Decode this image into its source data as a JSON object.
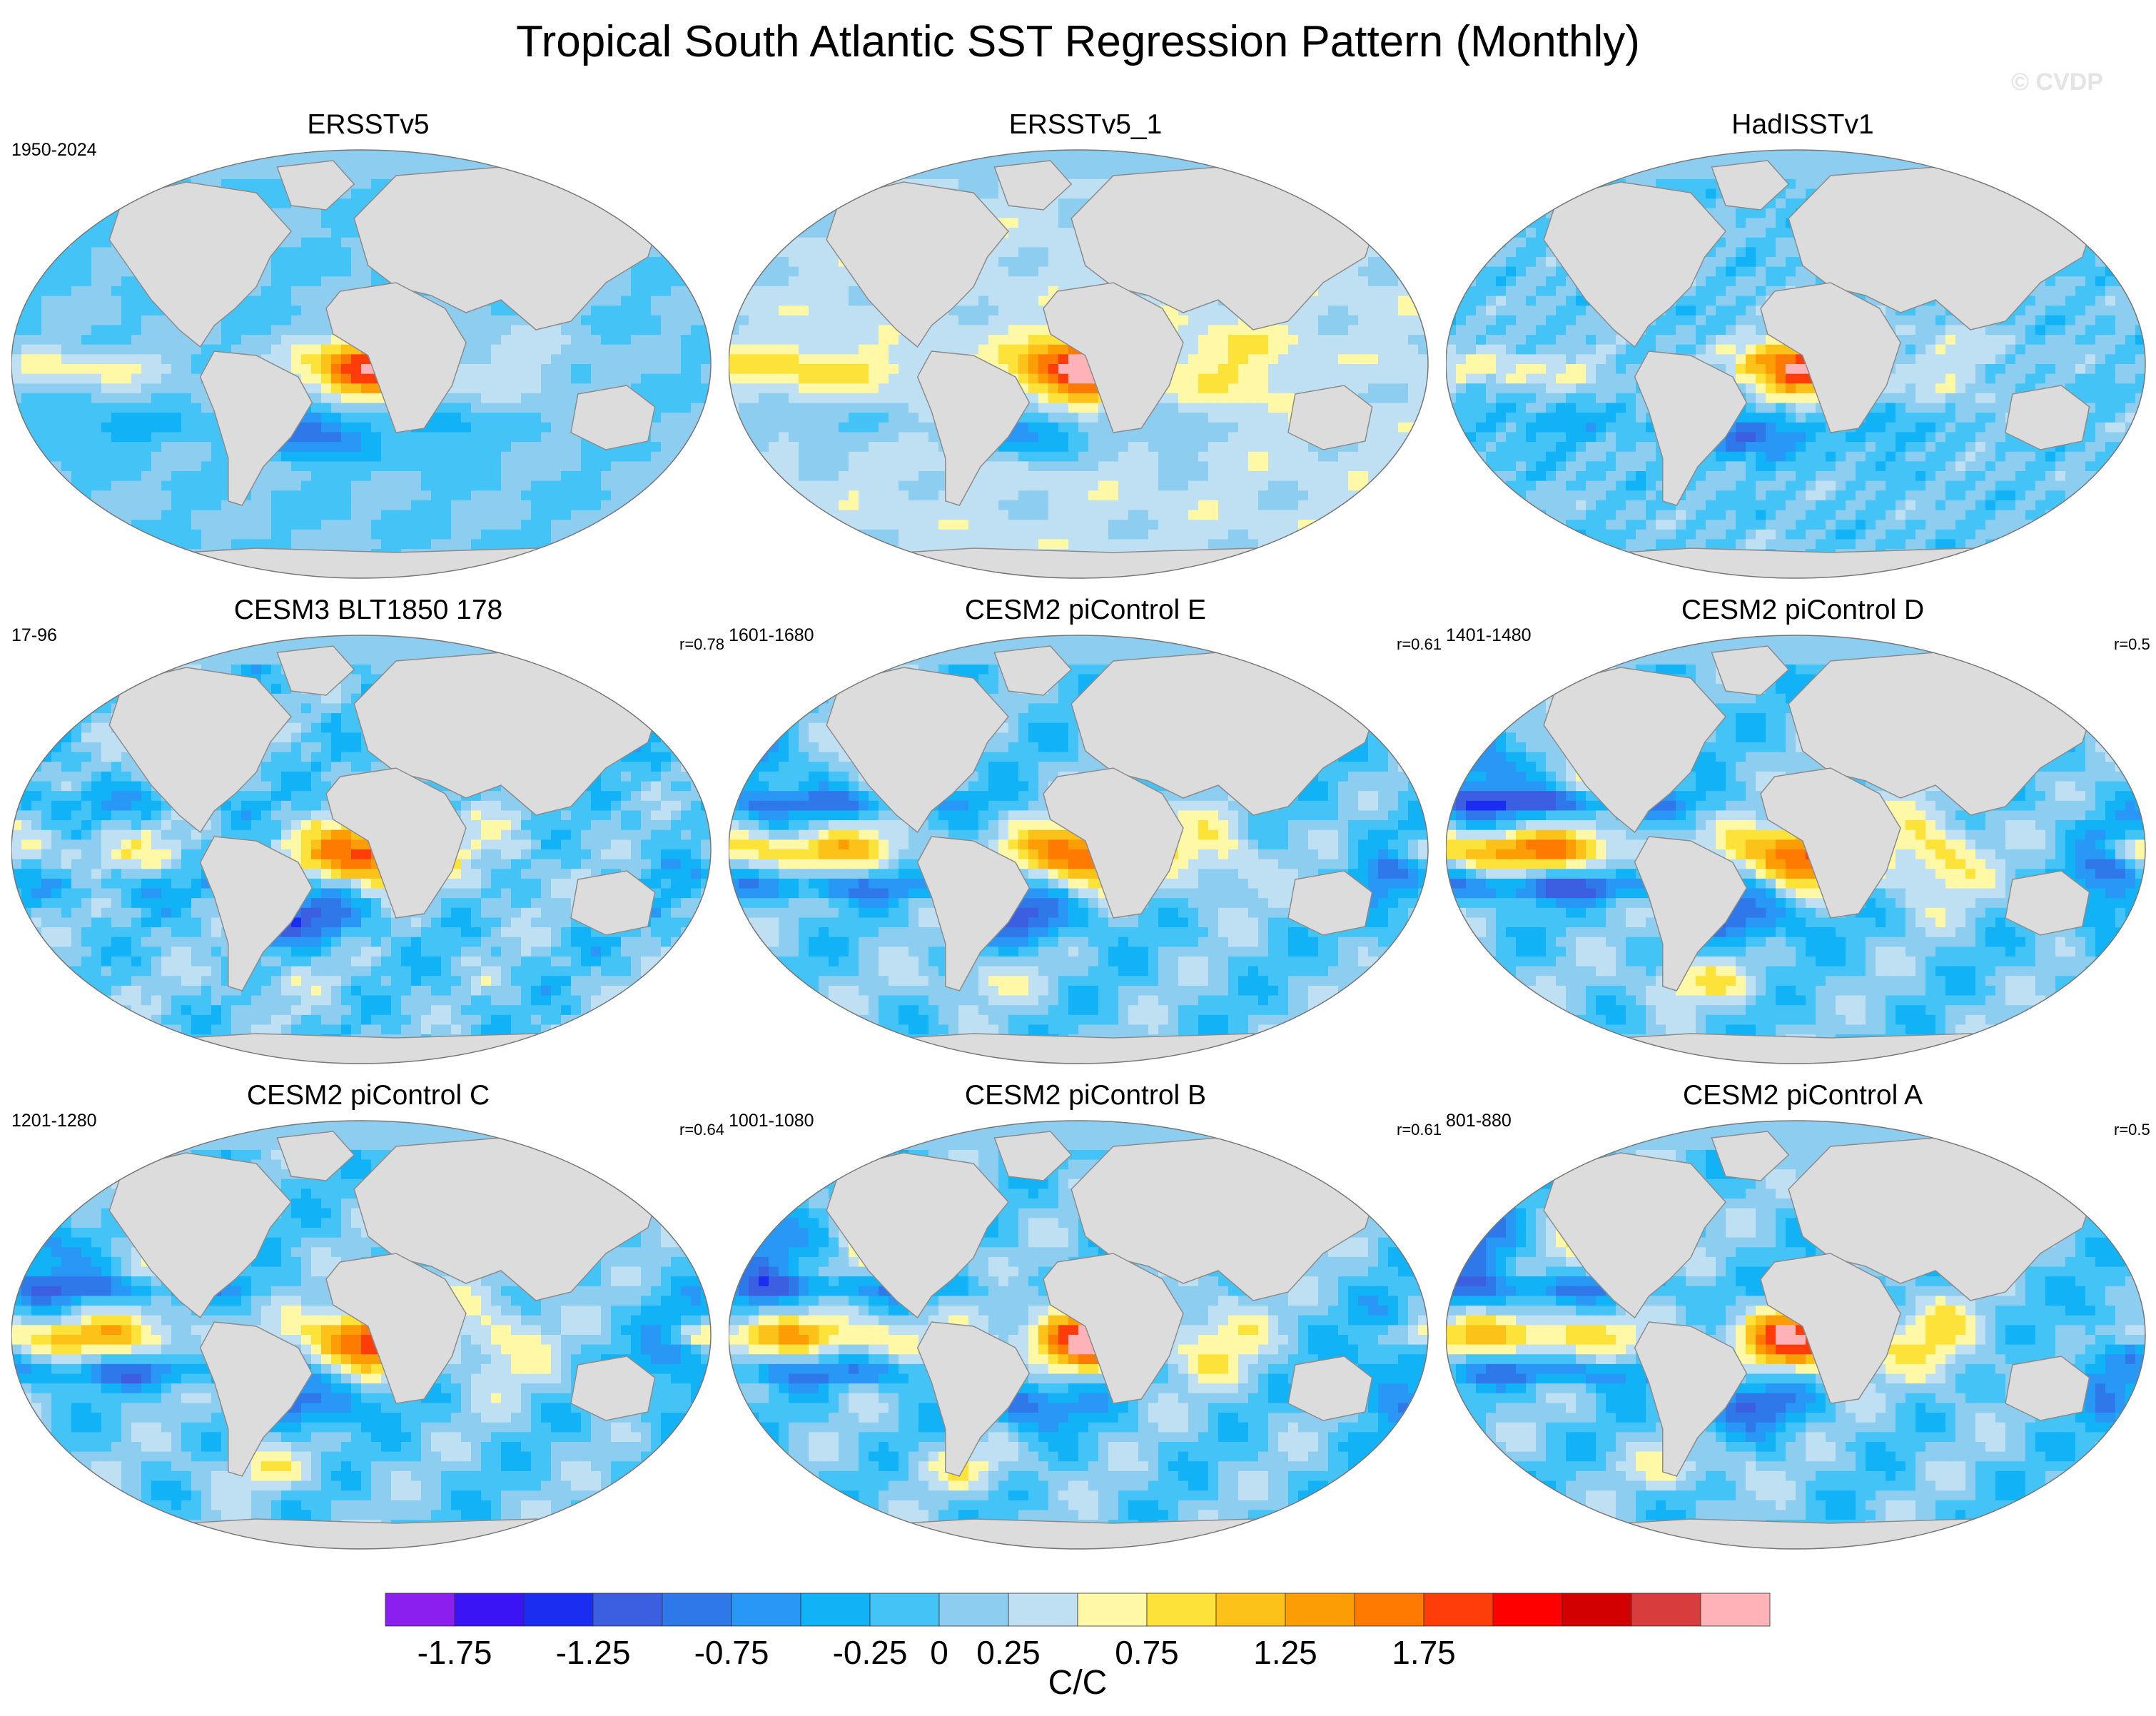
{
  "title": "Tropical South Atlantic SST Regression Pattern (Monthly)",
  "watermark": "© CVDP",
  "colors": {
    "land": "#dcdcdc",
    "coast": "#8c8c8c"
  },
  "panels": [
    {
      "title": "ERSSTv5",
      "period": "1950-2024",
      "corr": "",
      "style": "obs",
      "seed": 3
    },
    {
      "title": "ERSSTv5_1",
      "period": "",
      "corr": "",
      "style": "obs2",
      "seed": 5
    },
    {
      "title": "HadISSTv1",
      "period": "",
      "corr": "",
      "style": "had",
      "seed": 7
    },
    {
      "title": "CESM3 BLT1850 178",
      "period": "17-96",
      "corr": "r=0.78",
      "style": "model-weak",
      "seed": 11
    },
    {
      "title": "CESM2 piControl E",
      "period": "1601-1680",
      "corr": "r=0.61",
      "style": "model",
      "seed": 13
    },
    {
      "title": "CESM2 piControl D",
      "period": "1401-1480",
      "corr": "r=0.5",
      "style": "model-strong",
      "seed": 17
    },
    {
      "title": "CESM2 piControl C",
      "period": "1201-1280",
      "corr": "r=0.64",
      "style": "model",
      "seed": 19
    },
    {
      "title": "CESM2 piControl B",
      "period": "1001-1080",
      "corr": "r=0.61",
      "style": "model",
      "seed": 23
    },
    {
      "title": "CESM2 piControl A",
      "period": "801-880",
      "corr": "r=0.5",
      "style": "model",
      "seed": 29
    }
  ],
  "colorbar": {
    "unit": "C/C",
    "levels": [
      -2.0,
      -1.75,
      -1.5,
      -1.25,
      -1.0,
      -0.75,
      -0.5,
      -0.25,
      0,
      0.25,
      0.5,
      0.75,
      1.0,
      1.25,
      1.5,
      1.75,
      2.0
    ],
    "colors": [
      "#8a1fef",
      "#3a14f4",
      "#1b2df0",
      "#3b5fe0",
      "#2f78ea",
      "#2897f5",
      "#11b2f6",
      "#43c3f6",
      "#8ccdf0",
      "#bfe0f2",
      "#fff8a6",
      "#fde23a",
      "#fdc21a",
      "#fd9d05",
      "#fe7a00",
      "#ff3d0a",
      "#ff0000",
      "#d30000",
      "#d83c3c",
      "#ffb3b8"
    ],
    "tick_values": [
      -1.75,
      -1.25,
      -0.75,
      -0.25,
      0,
      0.25,
      0.75,
      1.25,
      1.75
    ],
    "tick_labels": [
      "-1.75",
      "-1.25",
      "-0.75",
      "-0.25",
      "0",
      "0.25",
      "0.75",
      "1.25",
      "1.75"
    ]
  }
}
